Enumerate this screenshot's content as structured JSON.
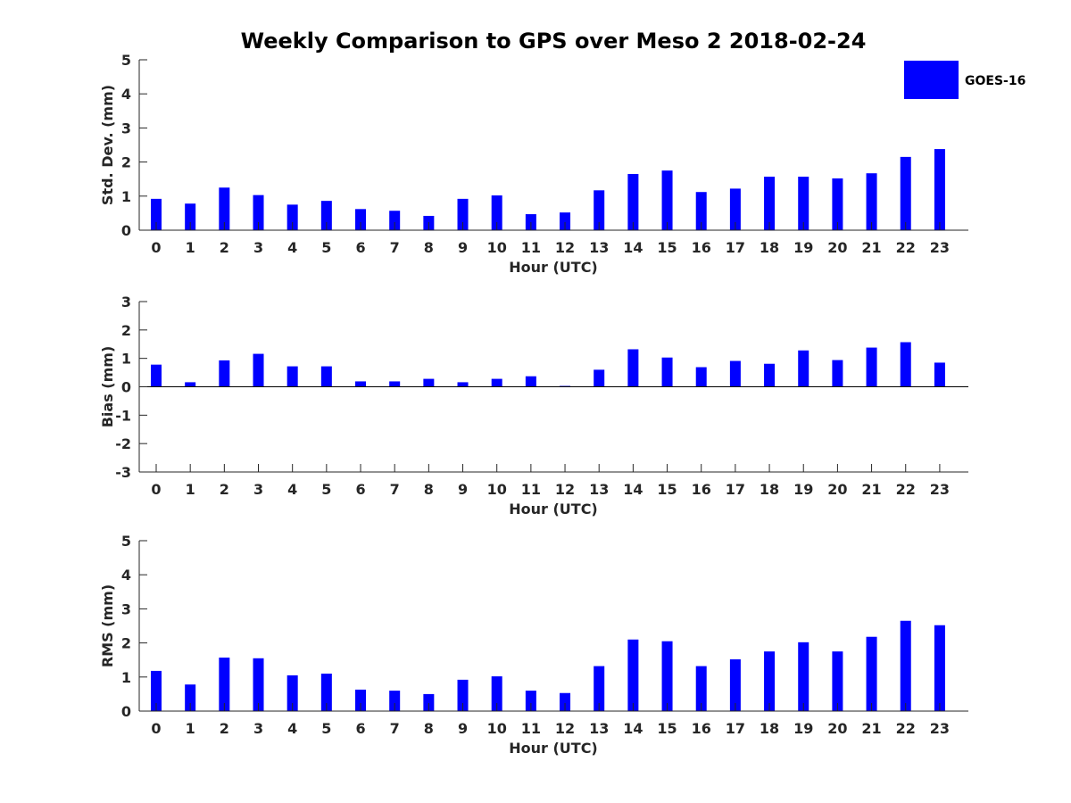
{
  "title": "Weekly Comparison to GPS over Meso 2 2018-02-24",
  "legend": {
    "label": "GOES-16",
    "color": "#0000ff"
  },
  "chart_data": [
    {
      "type": "bar",
      "series_name": "GOES-16",
      "xlabel": "Hour (UTC)",
      "ylabel": "Std. Dev. (mm)",
      "ylim": [
        0,
        5
      ],
      "yticks": [
        0,
        1,
        2,
        3,
        4,
        5
      ],
      "categories": [
        "0",
        "1",
        "2",
        "3",
        "4",
        "5",
        "6",
        "7",
        "8",
        "9",
        "10",
        "11",
        "12",
        "13",
        "14",
        "15",
        "16",
        "17",
        "18",
        "19",
        "20",
        "21",
        "22",
        "23"
      ],
      "values": [
        0.92,
        0.78,
        1.25,
        1.03,
        0.75,
        0.86,
        0.62,
        0.57,
        0.42,
        0.92,
        1.02,
        0.47,
        0.52,
        1.17,
        1.65,
        1.75,
        1.12,
        1.22,
        1.57,
        1.57,
        1.52,
        1.67,
        2.15,
        2.38
      ]
    },
    {
      "type": "bar",
      "series_name": "GOES-16",
      "xlabel": "Hour (UTC)",
      "ylabel": "Bias (mm)",
      "ylim": [
        -3,
        3
      ],
      "yticks": [
        -3,
        -2,
        -1,
        0,
        1,
        2,
        3
      ],
      "categories": [
        "0",
        "1",
        "2",
        "3",
        "4",
        "5",
        "6",
        "7",
        "8",
        "9",
        "10",
        "11",
        "12",
        "13",
        "14",
        "15",
        "16",
        "17",
        "18",
        "19",
        "20",
        "21",
        "22",
        "23"
      ],
      "values": [
        0.78,
        0.16,
        0.93,
        1.16,
        0.72,
        0.72,
        0.19,
        0.19,
        0.28,
        0.16,
        0.28,
        0.37,
        0.03,
        0.6,
        1.32,
        1.03,
        0.69,
        0.91,
        0.81,
        1.28,
        0.94,
        1.38,
        1.57,
        0.85
      ]
    },
    {
      "type": "bar",
      "series_name": "GOES-16",
      "xlabel": "Hour (UTC)",
      "ylabel": "RMS (mm)",
      "ylim": [
        0,
        5
      ],
      "yticks": [
        0,
        1,
        2,
        3,
        4,
        5
      ],
      "categories": [
        "0",
        "1",
        "2",
        "3",
        "4",
        "5",
        "6",
        "7",
        "8",
        "9",
        "10",
        "11",
        "12",
        "13",
        "14",
        "15",
        "16",
        "17",
        "18",
        "19",
        "20",
        "21",
        "22",
        "23"
      ],
      "values": [
        1.18,
        0.78,
        1.57,
        1.55,
        1.05,
        1.1,
        0.63,
        0.6,
        0.5,
        0.92,
        1.02,
        0.6,
        0.53,
        1.32,
        2.1,
        2.05,
        1.32,
        1.52,
        1.75,
        2.02,
        1.75,
        2.18,
        2.65,
        2.52
      ]
    }
  ]
}
